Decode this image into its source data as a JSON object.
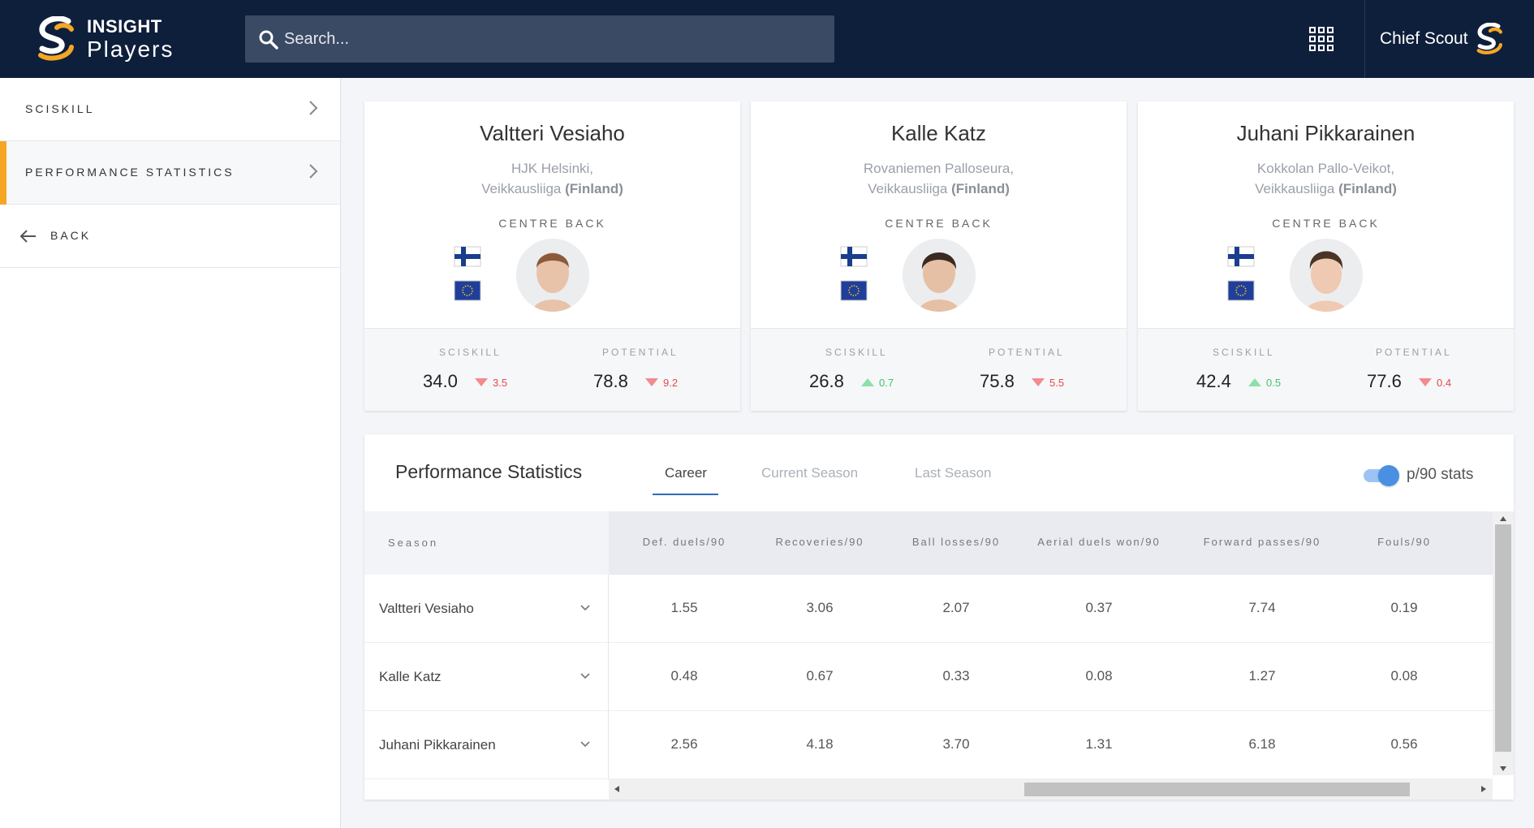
{
  "header": {
    "brand_top": "INSIGHT",
    "brand_bottom": "Players",
    "search_placeholder": "Search...",
    "user_name": "Chief Scout",
    "icons": [
      "logo-icon",
      "search-icon",
      "apps-grid-icon"
    ]
  },
  "sidebar": {
    "items": [
      {
        "label": "SCISKILL"
      },
      {
        "label": "PERFORMANCE STATISTICS",
        "active": true
      }
    ],
    "back_label": "BACK"
  },
  "colors": {
    "navy": "#0e1f3b",
    "accent": "#f5a623",
    "down": "#e5494d",
    "up": "#3fc56a",
    "tab": "#2e6bb8"
  },
  "players": [
    {
      "name": "Valtteri Vesiaho",
      "club": "HJK Helsinki,",
      "league": "Veikkausliiga",
      "country": "(Finland)",
      "position": "CENTRE BACK",
      "sciskill_label": "SCISKILL",
      "sciskill": "34.0",
      "sciskill_delta": "3.5",
      "sciskill_dir": "down",
      "potential_label": "POTENTIAL",
      "potential": "78.8",
      "potential_delta": "9.2",
      "potential_dir": "down"
    },
    {
      "name": "Kalle Katz",
      "club": "Rovaniemen Palloseura,",
      "league": "Veikkausliiga",
      "country": "(Finland)",
      "position": "CENTRE BACK",
      "sciskill_label": "SCISKILL",
      "sciskill": "26.8",
      "sciskill_delta": "0.7",
      "sciskill_dir": "up",
      "potential_label": "POTENTIAL",
      "potential": "75.8",
      "potential_delta": "5.5",
      "potential_dir": "down"
    },
    {
      "name": "Juhani Pikkarainen",
      "club": "Kokkolan Pallo-Veikot,",
      "league": "Veikkausliiga",
      "country": "(Finland)",
      "position": "CENTRE BACK",
      "sciskill_label": "SCISKILL",
      "sciskill": "42.4",
      "sciskill_delta": "0.5",
      "sciskill_dir": "up",
      "potential_label": "POTENTIAL",
      "potential": "77.6",
      "potential_delta": "0.4",
      "potential_dir": "down"
    }
  ],
  "performance": {
    "title": "Performance Statistics",
    "tabs": [
      {
        "label": "Career",
        "active": true
      },
      {
        "label": "Current Season"
      },
      {
        "label": "Last Season"
      }
    ],
    "toggle_label": "p/90 stats",
    "toggle_on": true,
    "season_header": "Season",
    "columns": [
      "Def. duels/90",
      "Recoveries/90",
      "Ball losses/90",
      "Aerial duels won/90",
      "Forward passes/90",
      "Fouls/90"
    ],
    "rows": [
      {
        "name": "Valtteri Vesiaho",
        "values": [
          "1.55",
          "3.06",
          "2.07",
          "0.37",
          "7.74",
          "0.19"
        ]
      },
      {
        "name": "Kalle Katz",
        "values": [
          "0.48",
          "0.67",
          "0.33",
          "0.08",
          "1.27",
          "0.08"
        ]
      },
      {
        "name": "Juhani Pikkarainen",
        "values": [
          "2.56",
          "4.18",
          "3.70",
          "1.31",
          "6.18",
          "0.56"
        ]
      }
    ]
  }
}
